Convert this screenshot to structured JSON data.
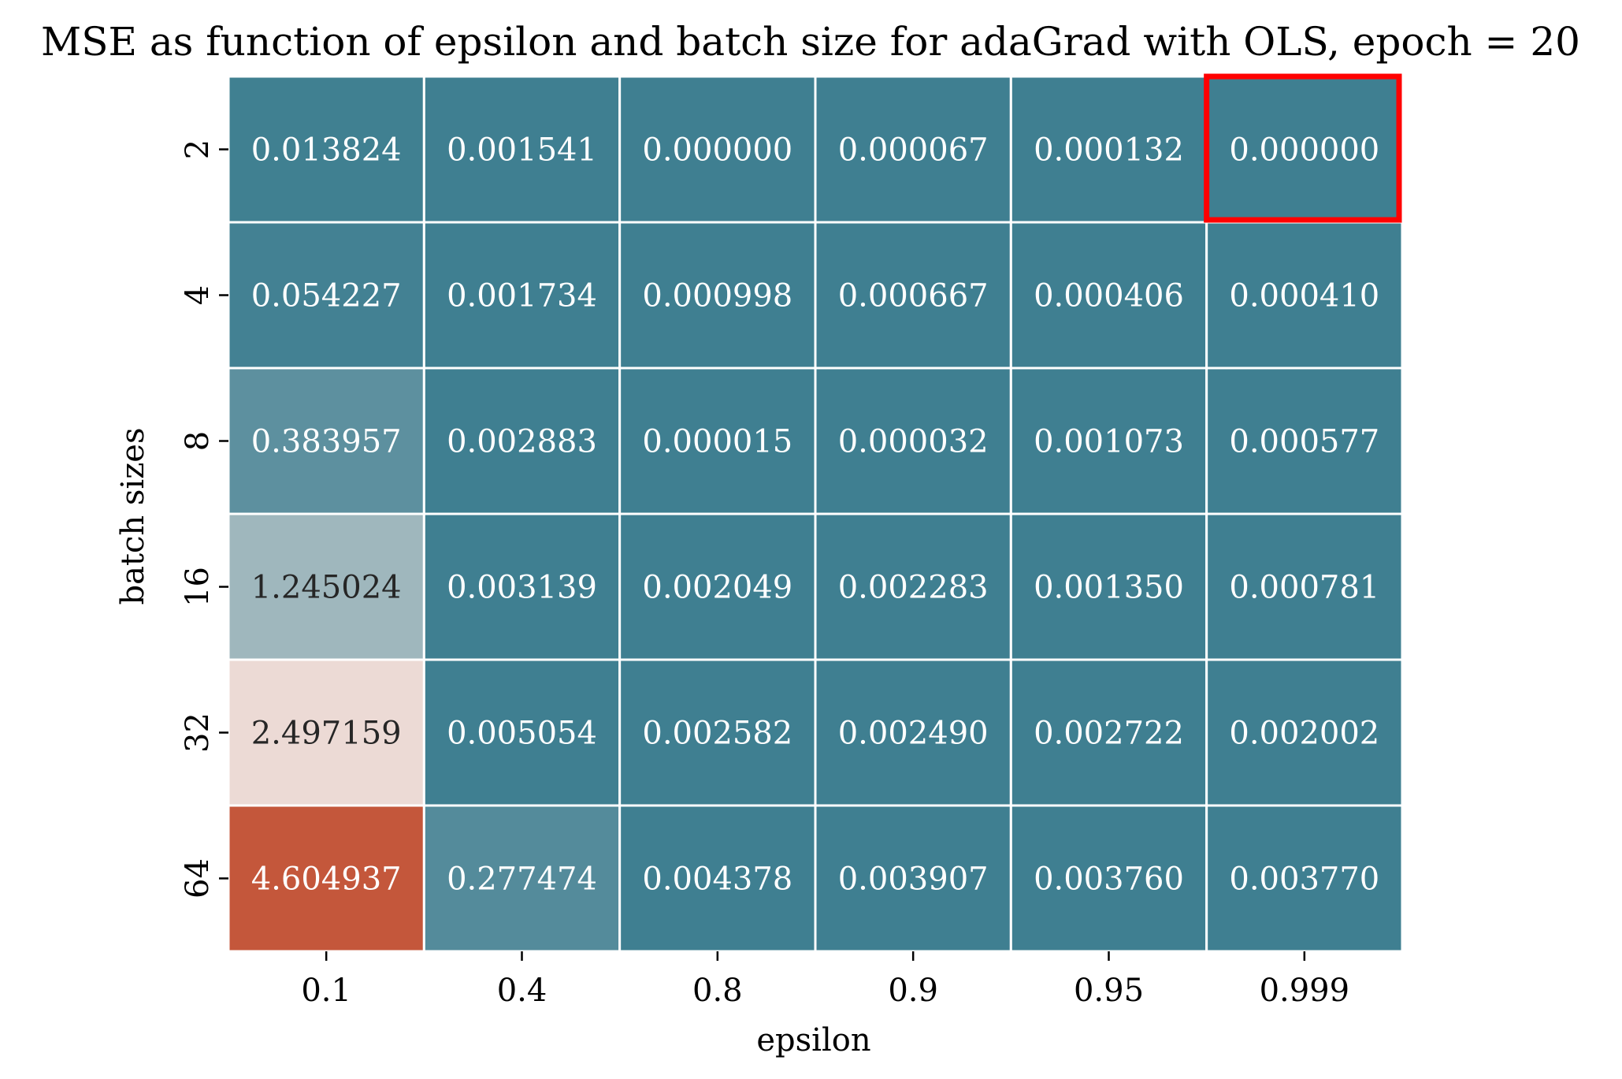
{
  "chart_data": {
    "type": "heatmap",
    "title": "MSE as function of epsilon and batch size for adaGrad with OLS, epoch = 20",
    "xlabel": "epsilon",
    "ylabel": "batch sizes",
    "x_categories": [
      "0.1",
      "0.4",
      "0.8",
      "0.9",
      "0.95",
      "0.999"
    ],
    "y_categories": [
      "2",
      "4",
      "8",
      "16",
      "32",
      "64"
    ],
    "values": [
      [
        0.013824,
        0.001541,
        0.0,
        6.7e-05,
        0.000132,
        0.0
      ],
      [
        0.054227,
        0.001734,
        0.000998,
        0.000667,
        0.000406,
        0.00041
      ],
      [
        0.383957,
        0.002883,
        1.5e-05,
        3.2e-05,
        0.001073,
        0.000577
      ],
      [
        1.245024,
        0.003139,
        0.002049,
        0.002283,
        0.00135,
        0.000781
      ],
      [
        2.497159,
        0.005054,
        0.002582,
        0.00249,
        0.002722,
        0.002002
      ],
      [
        4.604937,
        0.277474,
        0.004378,
        0.003907,
        0.00376,
        0.00377
      ]
    ],
    "cell_labels": [
      [
        "0.013824",
        "0.001541",
        "0.000000",
        "0.000067",
        "0.000132",
        "0.000000"
      ],
      [
        "0.054227",
        "0.001734",
        "0.000998",
        "0.000667",
        "0.000406",
        "0.000410"
      ],
      [
        "0.383957",
        "0.002883",
        "0.000015",
        "0.000032",
        "0.001073",
        "0.000577"
      ],
      [
        "1.245024",
        "0.003139",
        "0.002049",
        "0.002283",
        "0.001350",
        "0.000781"
      ],
      [
        "2.497159",
        "0.005054",
        "0.002582",
        "0.002490",
        "0.002722",
        "0.002002"
      ],
      [
        "4.604937",
        "0.277474",
        "0.004378",
        "0.003907",
        "0.003760",
        "0.003770"
      ]
    ],
    "highlighted_cell": {
      "row": 0,
      "col": 5
    },
    "colormap": [
      "#3f7f91",
      "#f0e6e3",
      "#c4573b"
    ],
    "highlight_color": "#ff0000",
    "grid": false,
    "colorbar": false
  }
}
